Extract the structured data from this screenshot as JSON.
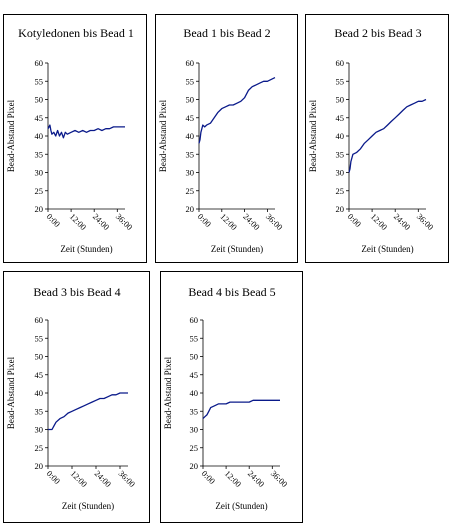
{
  "chart_data": [
    {
      "type": "line",
      "title": "Kotyledonen bis Bead 1",
      "xlabel": "Zeit  (Stunden)",
      "ylabel": "Bead-Abstand Pixel",
      "ylim": [
        20,
        60
      ],
      "yticks": [
        "20",
        "25",
        "30",
        "35",
        "40",
        "45",
        "50",
        "55",
        "60"
      ],
      "xlim": [
        0,
        40
      ],
      "xticks": [
        "0:00",
        "12:00",
        "24:00",
        "36:00"
      ],
      "x": [
        0,
        1,
        1.5,
        2,
        3,
        4,
        5,
        6,
        7,
        8,
        9,
        10,
        12,
        14,
        16,
        18,
        20,
        22,
        24,
        26,
        28,
        30,
        32,
        34,
        36,
        38,
        40
      ],
      "y": [
        42,
        43,
        41.5,
        40.5,
        41,
        40,
        41.5,
        40,
        41,
        39.5,
        41,
        40.5,
        41,
        41.5,
        41,
        41.5,
        41,
        41.5,
        41.5,
        42,
        41.5,
        42,
        42,
        42.5,
        42.5,
        42.5,
        42.5
      ],
      "color": "#0a1a8a"
    },
    {
      "type": "line",
      "title": "Bead 1 bis Bead 2",
      "xlabel": "Zeit  (Stunden)",
      "ylabel": "Bead-Abstand Pixel",
      "ylim": [
        20,
        60
      ],
      "yticks": [
        "20",
        "25",
        "30",
        "35",
        "40",
        "45",
        "50",
        "55",
        "60"
      ],
      "xlim": [
        0,
        40
      ],
      "xticks": [
        "0:00",
        "12:00",
        "24:00",
        "36:00"
      ],
      "x": [
        0,
        0.5,
        1,
        2,
        3,
        4,
        6,
        8,
        10,
        12,
        14,
        16,
        18,
        20,
        22,
        24,
        26,
        28,
        30,
        32,
        34,
        36,
        38,
        40
      ],
      "y": [
        38,
        39,
        41,
        43,
        42.5,
        43,
        43.5,
        45,
        46.5,
        47.5,
        48,
        48.5,
        48.5,
        49,
        49.5,
        50.5,
        52.5,
        53.5,
        54,
        54.5,
        55,
        55,
        55.5,
        56
      ],
      "color": "#0a1a8a"
    },
    {
      "type": "line",
      "title": "Bead 2 bis Bead 3",
      "xlabel": "Zeit  (Stunden)",
      "ylabel": "Bead-Abstand Pixel",
      "ylim": [
        20,
        60
      ],
      "yticks": [
        "20",
        "25",
        "30",
        "35",
        "40",
        "45",
        "50",
        "55",
        "60"
      ],
      "xlim": [
        0,
        40
      ],
      "xticks": [
        "0:00",
        "12:00",
        "24:00",
        "36:00"
      ],
      "x": [
        0,
        0.5,
        1,
        2,
        4,
        6,
        8,
        10,
        12,
        14,
        16,
        18,
        20,
        22,
        24,
        26,
        28,
        30,
        32,
        34,
        36,
        38,
        40
      ],
      "y": [
        30,
        31,
        33,
        35,
        35.5,
        36.5,
        38,
        39,
        40,
        41,
        41.5,
        42,
        43,
        44,
        45,
        46,
        47,
        48,
        48.5,
        49,
        49.5,
        49.5,
        50
      ],
      "color": "#0a1a8a"
    },
    {
      "type": "line",
      "title": "Bead 3 bis Bead 4",
      "xlabel": "Zeit  (Stunden)",
      "ylabel": "Bead-Abstand Pixel",
      "ylim": [
        20,
        60
      ],
      "yticks": [
        "20",
        "25",
        "30",
        "35",
        "40",
        "45",
        "50",
        "55",
        "60"
      ],
      "xlim": [
        0,
        40
      ],
      "xticks": [
        "0:00",
        "12:00",
        "24:00",
        "36:00"
      ],
      "x": [
        0,
        1,
        2,
        3,
        4,
        6,
        8,
        10,
        12,
        14,
        16,
        18,
        20,
        22,
        24,
        26,
        28,
        30,
        32,
        34,
        36,
        38,
        40
      ],
      "y": [
        30,
        30,
        30,
        31,
        32,
        33,
        33.5,
        34.5,
        35,
        35.5,
        36,
        36.5,
        37,
        37.5,
        38,
        38.5,
        38.5,
        39,
        39.5,
        39.5,
        40,
        40,
        40
      ],
      "color": "#0a1a8a"
    },
    {
      "type": "line",
      "title": "Bead 4 bis Bead 5",
      "xlabel": "Zeit  (Stunden)",
      "ylabel": "Bead-Abstand Pixel",
      "ylim": [
        20,
        60
      ],
      "yticks": [
        "20",
        "25",
        "30",
        "35",
        "40",
        "45",
        "50",
        "55",
        "60"
      ],
      "xlim": [
        0,
        40
      ],
      "xticks": [
        "0:00",
        "12:00",
        "24:00",
        "36:00"
      ],
      "x": [
        0,
        1,
        2,
        3,
        4,
        6,
        8,
        10,
        12,
        14,
        16,
        18,
        20,
        22,
        24,
        26,
        28,
        30,
        32,
        34,
        36,
        38,
        40
      ],
      "y": [
        33,
        33.5,
        34,
        35,
        36,
        36.5,
        37,
        37,
        37,
        37.5,
        37.5,
        37.5,
        37.5,
        37.5,
        37.5,
        38,
        38,
        38,
        38,
        38,
        38,
        38,
        38
      ],
      "color": "#0a1a8a"
    }
  ]
}
